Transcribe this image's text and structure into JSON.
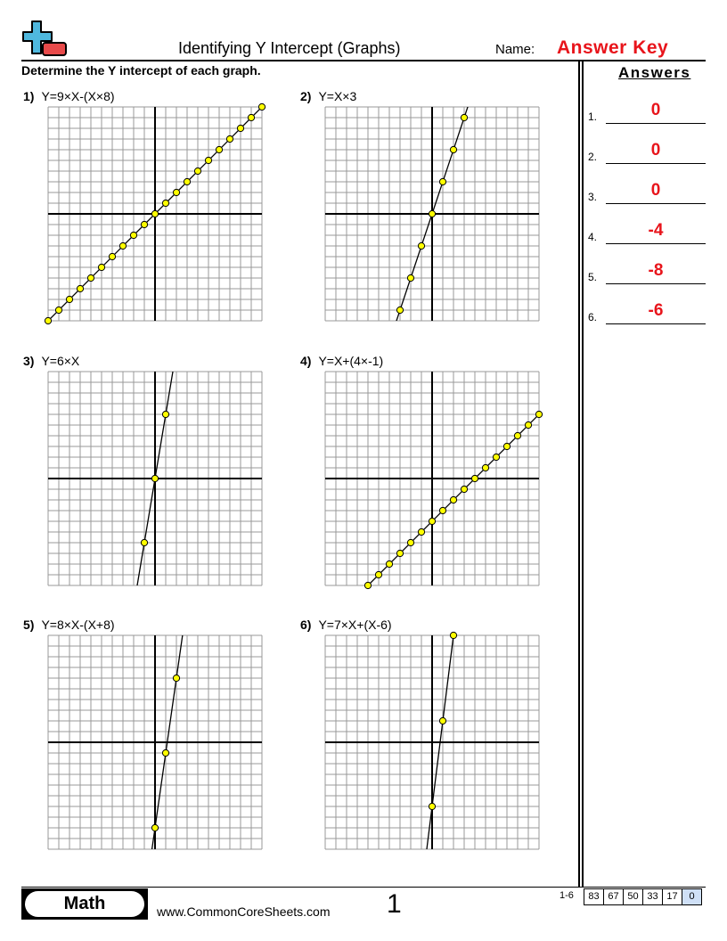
{
  "header": {
    "title": "Identifying Y Intercept (Graphs)",
    "name_label": "Name:",
    "answer_key": "Answer Key",
    "instructions": "Determine the Y intercept of each graph."
  },
  "logo": {
    "icon": "plus-minus-logo",
    "colors": {
      "plus": "#4fb8de",
      "minus": "#e84a4a"
    }
  },
  "colors": {
    "answer": "#e8141b",
    "point": "#ffff00",
    "score_highlight": "#cfe0f7"
  },
  "problems": [
    {
      "num": "1)",
      "equation": "Y=9×X-(X×8)",
      "slope": 1,
      "intercept": 0,
      "points_x": [
        -10,
        -9,
        -8,
        -7,
        -6,
        -5,
        -4,
        -3,
        -2,
        -1,
        0,
        1,
        2,
        3,
        4,
        5,
        6,
        7,
        8,
        9,
        10
      ]
    },
    {
      "num": "2)",
      "equation": "Y=X×3",
      "slope": 3,
      "intercept": 0,
      "points_x": [
        -3,
        -2,
        -1,
        0,
        1,
        2,
        3
      ]
    },
    {
      "num": "3)",
      "equation": "Y=6×X",
      "slope": 6,
      "intercept": 0,
      "points_x": [
        -1,
        0,
        1
      ]
    },
    {
      "num": "4)",
      "equation": "Y=X+(4×-1)",
      "slope": 1,
      "intercept": -4,
      "points_x": [
        -6,
        -5,
        -4,
        -3,
        -2,
        -1,
        0,
        1,
        2,
        3,
        4,
        5,
        6,
        7,
        8,
        9,
        10
      ]
    },
    {
      "num": "5)",
      "equation": "Y=8×X-(X+8)",
      "slope": 7,
      "intercept": -8,
      "points_x": [
        0,
        1,
        2
      ]
    },
    {
      "num": "6)",
      "equation": "Y=7×X+(X-6)",
      "slope": 8,
      "intercept": -6,
      "points_x": [
        0,
        1,
        2
      ]
    }
  ],
  "graph": {
    "xlim": [
      -10,
      10
    ],
    "ylim": [
      -10,
      10
    ],
    "grid": true
  },
  "answers": {
    "title": "Answers",
    "items": [
      {
        "num": "1.",
        "value": "0"
      },
      {
        "num": "2.",
        "value": "0"
      },
      {
        "num": "3.",
        "value": "0"
      },
      {
        "num": "4.",
        "value": "-4"
      },
      {
        "num": "5.",
        "value": "-8"
      },
      {
        "num": "6.",
        "value": "-6"
      }
    ]
  },
  "footer": {
    "subject": "Math",
    "site": "www.CommonCoreSheets.com",
    "page": "1",
    "range": "1-6",
    "scores": [
      "83",
      "67",
      "50",
      "33",
      "17",
      "0"
    ]
  }
}
